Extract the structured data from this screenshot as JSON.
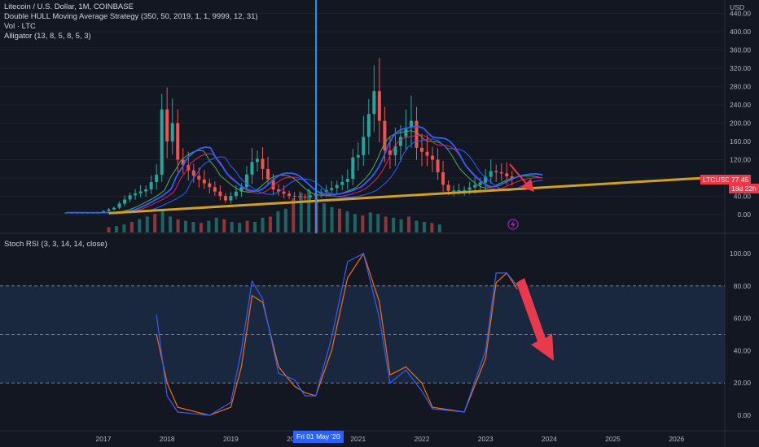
{
  "header": {
    "symbol_line": "Litecoin / U.S. Dollar, 1M, COINBASE",
    "indicator_1": "Double HULL Moving Average Strategy (350, 50, 2019, 1, 1, 9999, 12, 31)",
    "indicator_2": "Vol · LTC",
    "indicator_3": "Alligator (13, 8, 5, 8, 5, 3)",
    "currency": "USD"
  },
  "price_axis": {
    "ticks": [
      "440.00",
      "400.00",
      "360.00",
      "320.00",
      "280.00",
      "240.00",
      "200.00",
      "160.00",
      "120.00",
      "80.00",
      "40.00",
      "0.00"
    ],
    "last_price_symbol": "LTCUSD",
    "last_price": "77.45",
    "countdown": "18d 22h"
  },
  "rsi_pane": {
    "legend": "Stoch RSI (3, 3, 14, 14, close)",
    "ticks": [
      "100.00",
      "80.00",
      "60.00",
      "40.00",
      "20.00",
      "0.00"
    ]
  },
  "time_axis": {
    "ticks": [
      "2017",
      "2018",
      "2019",
      "2020",
      "2021",
      "2022",
      "2023",
      "2024",
      "2025",
      "2026"
    ],
    "cursor_label": "Fri 01 May '20"
  },
  "colors": {
    "background": "#131722",
    "up": "#26a69a",
    "down": "#ef5350",
    "trendline": "#d4a017",
    "cursor": "#2196f3",
    "k_line": "#2962ff",
    "d_line": "#ff6d00",
    "arrow": "#e8394d",
    "band": "#1b2a44"
  },
  "chart_data": {
    "type": "candlestick",
    "title": "Litecoin / U.S. Dollar, 1M, COINBASE",
    "x_unit": "month",
    "monthly_close": [
      {
        "date": "2016-06",
        "close": 4
      },
      {
        "date": "2016-09",
        "close": 4
      },
      {
        "date": "2016-12",
        "close": 4
      },
      {
        "date": "2017-03",
        "close": 15
      },
      {
        "date": "2017-06",
        "close": 42
      },
      {
        "date": "2017-09",
        "close": 55
      },
      {
        "date": "2017-11",
        "close": 87
      },
      {
        "date": "2017-12",
        "close": 230
      },
      {
        "date": "2018-01",
        "close": 160
      },
      {
        "date": "2018-02",
        "close": 200
      },
      {
        "date": "2018-03",
        "close": 120
      },
      {
        "date": "2018-06",
        "close": 85
      },
      {
        "date": "2018-09",
        "close": 60
      },
      {
        "date": "2018-12",
        "close": 31
      },
      {
        "date": "2019-03",
        "close": 60
      },
      {
        "date": "2019-05",
        "close": 115
      },
      {
        "date": "2019-06",
        "close": 122
      },
      {
        "date": "2019-09",
        "close": 55
      },
      {
        "date": "2019-12",
        "close": 41
      },
      {
        "date": "2020-03",
        "close": 38
      },
      {
        "date": "2020-05",
        "close": 45
      },
      {
        "date": "2020-08",
        "close": 58
      },
      {
        "date": "2020-11",
        "close": 78
      },
      {
        "date": "2020-12",
        "close": 125
      },
      {
        "date": "2021-01",
        "close": 130
      },
      {
        "date": "2021-02",
        "close": 170
      },
      {
        "date": "2021-04",
        "close": 270
      },
      {
        "date": "2021-06",
        "close": 140
      },
      {
        "date": "2021-07",
        "close": 130
      },
      {
        "date": "2021-10",
        "close": 190
      },
      {
        "date": "2021-11",
        "close": 205
      },
      {
        "date": "2021-12",
        "close": 146
      },
      {
        "date": "2022-03",
        "close": 120
      },
      {
        "date": "2022-05",
        "close": 65
      },
      {
        "date": "2022-06",
        "close": 52
      },
      {
        "date": "2022-09",
        "close": 54
      },
      {
        "date": "2022-12",
        "close": 70
      },
      {
        "date": "2023-02",
        "close": 95
      },
      {
        "date": "2023-04",
        "close": 90
      },
      {
        "date": "2023-06",
        "close": 77
      }
    ],
    "volume_relative": [
      0.1,
      0.12,
      0.15,
      0.2,
      0.25,
      0.3,
      0.35,
      0.42,
      0.3,
      0.25,
      0.22,
      0.2,
      0.18,
      0.22,
      0.28,
      0.25,
      0.2,
      0.18,
      0.22,
      0.2,
      0.28,
      0.3,
      0.4,
      0.45,
      0.65,
      0.75,
      0.82,
      0.7,
      0.55,
      0.48,
      0.45,
      0.4,
      0.35,
      0.32,
      0.38,
      0.35,
      0.3,
      0.28,
      0.25,
      0.3,
      0.22,
      0.2,
      0.18,
      0.15
    ],
    "trendline": [
      {
        "date": "2017-02",
        "price": 3
      },
      {
        "date": "2026-09",
        "price": 82
      }
    ],
    "stoch_rsi": {
      "k": [
        {
          "date": "2017-11",
          "value": 62
        },
        {
          "date": "2018-01",
          "value": 12
        },
        {
          "date": "2018-03",
          "value": 2
        },
        {
          "date": "2018-09",
          "value": 0
        },
        {
          "date": "2019-01",
          "value": 8
        },
        {
          "date": "2019-03",
          "value": 40
        },
        {
          "date": "2019-05",
          "value": 83
        },
        {
          "date": "2019-07",
          "value": 72
        },
        {
          "date": "2019-10",
          "value": 26
        },
        {
          "date": "2020-01",
          "value": 22
        },
        {
          "date": "2020-03",
          "value": 12
        },
        {
          "date": "2020-05",
          "value": 12
        },
        {
          "date": "2020-08",
          "value": 48
        },
        {
          "date": "2020-11",
          "value": 95
        },
        {
          "date": "2021-02",
          "value": 100
        },
        {
          "date": "2021-05",
          "value": 60
        },
        {
          "date": "2021-07",
          "value": 20
        },
        {
          "date": "2021-10",
          "value": 28
        },
        {
          "date": "2022-01",
          "value": 15
        },
        {
          "date": "2022-03",
          "value": 4
        },
        {
          "date": "2022-09",
          "value": 2
        },
        {
          "date": "2023-01",
          "value": 40
        },
        {
          "date": "2023-03",
          "value": 88
        },
        {
          "date": "2023-05",
          "value": 88
        },
        {
          "date": "2023-07",
          "value": 80
        }
      ],
      "d": [
        {
          "date": "2017-11",
          "value": 50
        },
        {
          "date": "2018-01",
          "value": 20
        },
        {
          "date": "2018-03",
          "value": 5
        },
        {
          "date": "2018-09",
          "value": 0
        },
        {
          "date": "2019-01",
          "value": 5
        },
        {
          "date": "2019-03",
          "value": 30
        },
        {
          "date": "2019-05",
          "value": 74
        },
        {
          "date": "2019-07",
          "value": 70
        },
        {
          "date": "2019-10",
          "value": 30
        },
        {
          "date": "2020-01",
          "value": 18
        },
        {
          "date": "2020-03",
          "value": 14
        },
        {
          "date": "2020-05",
          "value": 12
        },
        {
          "date": "2020-08",
          "value": 40
        },
        {
          "date": "2020-11",
          "value": 85
        },
        {
          "date": "2021-02",
          "value": 100
        },
        {
          "date": "2021-05",
          "value": 70
        },
        {
          "date": "2021-07",
          "value": 25
        },
        {
          "date": "2021-10",
          "value": 30
        },
        {
          "date": "2022-01",
          "value": 20
        },
        {
          "date": "2022-03",
          "value": 5
        },
        {
          "date": "2022-09",
          "value": 2
        },
        {
          "date": "2023-01",
          "value": 35
        },
        {
          "date": "2023-03",
          "value": 82
        },
        {
          "date": "2023-05",
          "value": 88
        },
        {
          "date": "2023-07",
          "value": 78
        }
      ],
      "upper_band": 80,
      "middle": 50,
      "lower_band": 20,
      "ylim": [
        0,
        100
      ]
    },
    "ylim_price": [
      0,
      440
    ]
  }
}
